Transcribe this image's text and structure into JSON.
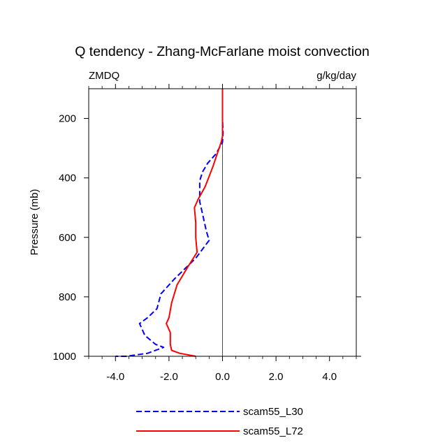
{
  "chart_data": {
    "type": "line",
    "title": "Q tendency - Zhang-McFarlane moist convection",
    "left_label": "ZMDQ",
    "right_label": "g/kg/day",
    "xlabel": "",
    "ylabel": "Pressure (mb)",
    "xlim": [
      -5.0,
      5.0
    ],
    "ylim": [
      100,
      1000
    ],
    "y_inverted": true,
    "x_ticks": [
      -4.0,
      -2.0,
      0.0,
      2.0,
      4.0
    ],
    "x_tick_labels": [
      "-4.0",
      "-2.0",
      "0.0",
      "2.0",
      "4.0"
    ],
    "y_ticks": [
      200,
      400,
      600,
      800,
      1000
    ],
    "y_tick_labels": [
      "200",
      "400",
      "600",
      "800",
      "1000"
    ],
    "zero_line": 0.0,
    "legend_position": "bottom-center",
    "series": [
      {
        "name": "scam55_L30",
        "color": "#0000ff",
        "style": "dashed",
        "points": [
          [
            0.0,
            100
          ],
          [
            0.0,
            200
          ],
          [
            0.02,
            250
          ],
          [
            0.0,
            280
          ],
          [
            -0.25,
            320
          ],
          [
            -0.55,
            350
          ],
          [
            -0.75,
            380
          ],
          [
            -0.85,
            410
          ],
          [
            -0.85,
            480
          ],
          [
            -0.75,
            520
          ],
          [
            -0.6,
            580
          ],
          [
            -0.5,
            610
          ],
          [
            -1.0,
            670
          ],
          [
            -1.8,
            740
          ],
          [
            -2.3,
            790
          ],
          [
            -2.45,
            840
          ],
          [
            -2.8,
            870
          ],
          [
            -3.1,
            890
          ],
          [
            -2.9,
            930
          ],
          [
            -2.5,
            960
          ],
          [
            -2.2,
            970
          ],
          [
            -2.8,
            990
          ],
          [
            -3.6,
            1000
          ],
          [
            -4.0,
            1000
          ]
        ]
      },
      {
        "name": "scam55_L72",
        "color": "#ff0000",
        "style": "solid",
        "points": [
          [
            0.0,
            100
          ],
          [
            0.0,
            200
          ],
          [
            0.0,
            260
          ],
          [
            -0.05,
            280
          ],
          [
            -0.2,
            320
          ],
          [
            -0.35,
            360
          ],
          [
            -0.65,
            430
          ],
          [
            -0.9,
            470
          ],
          [
            -1.05,
            500
          ],
          [
            -1.0,
            550
          ],
          [
            -1.0,
            600
          ],
          [
            -0.95,
            650
          ],
          [
            -1.3,
            700
          ],
          [
            -1.7,
            760
          ],
          [
            -1.9,
            820
          ],
          [
            -2.0,
            870
          ],
          [
            -2.1,
            890
          ],
          [
            -1.95,
            920
          ],
          [
            -1.95,
            960
          ],
          [
            -1.9,
            980
          ],
          [
            -1.6,
            990
          ],
          [
            -1.0,
            1000
          ]
        ]
      }
    ]
  }
}
